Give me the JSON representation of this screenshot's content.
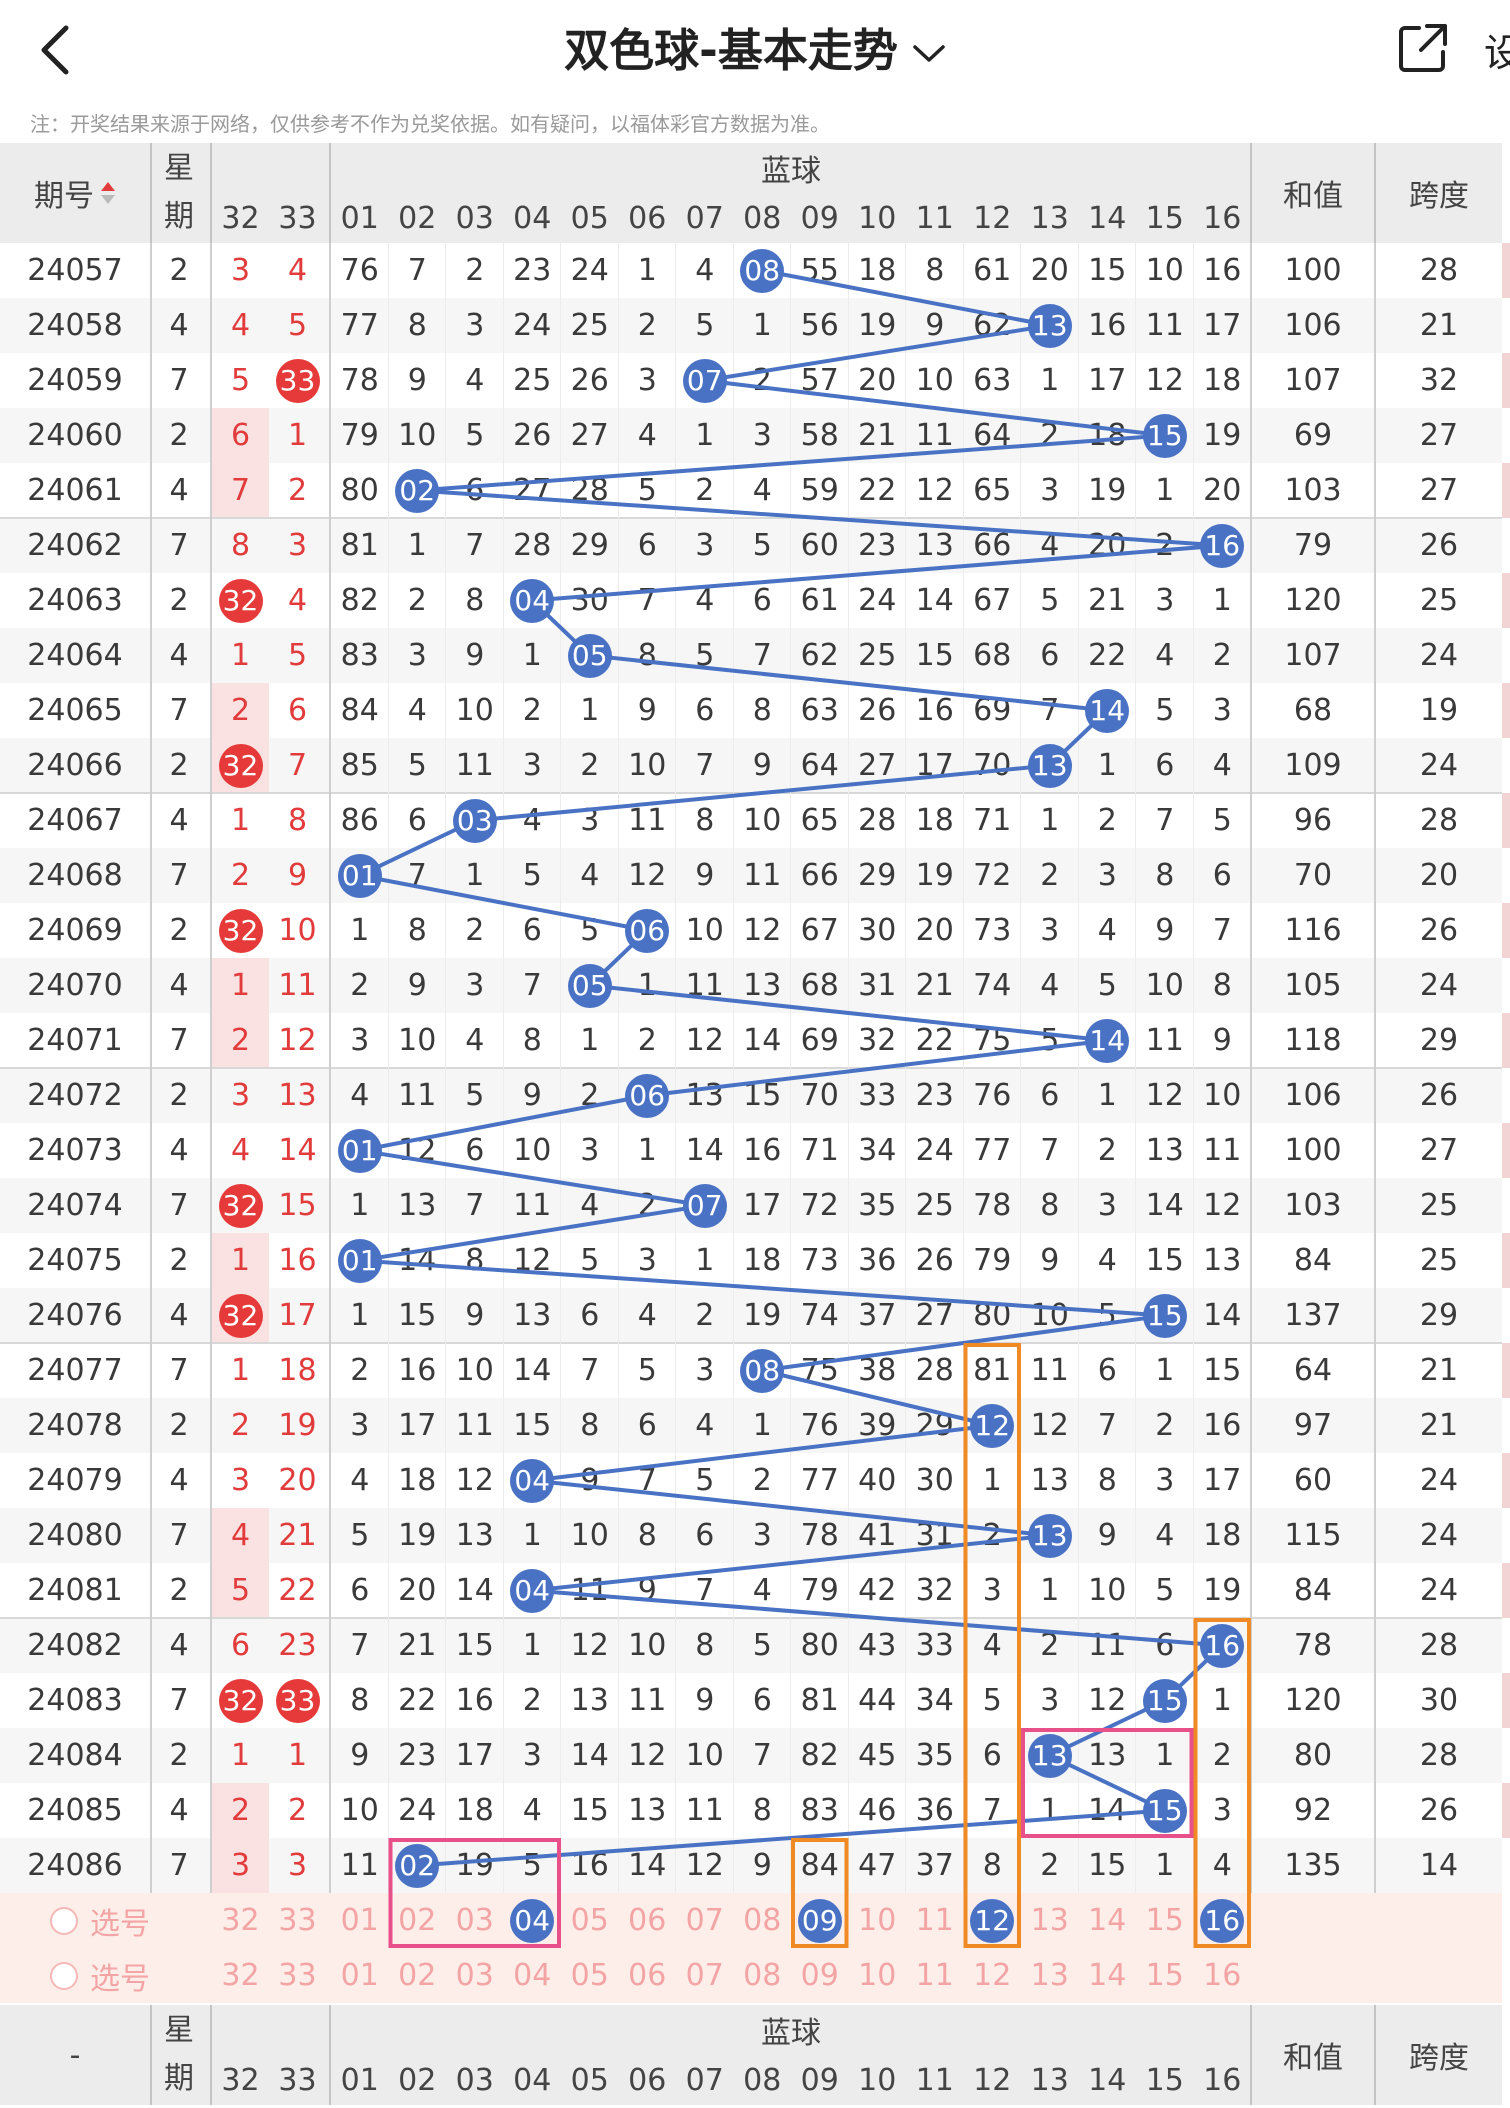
{
  "header": {
    "title": "双色球-基本走势",
    "settings_label": "设"
  },
  "notice": "注：开奖结果来源于网络，仅供参考不作为兑奖依据。如有疑问，以福体彩官方数据为准。",
  "table_header": {
    "period": "期号",
    "weekday": "星期",
    "red_cols": [
      "32",
      "33"
    ],
    "blue_group": "蓝球",
    "blue_cols": [
      "01",
      "02",
      "03",
      "04",
      "05",
      "06",
      "07",
      "08",
      "09",
      "10",
      "11",
      "12",
      "13",
      "14",
      "15",
      "16"
    ],
    "sum": "和值",
    "span": "跨度"
  },
  "footer_header": {
    "period": "-",
    "weekday": "星期",
    "red_cols": [
      "32",
      "33"
    ],
    "blue_group": "蓝球",
    "blue_cols": [
      "01",
      "02",
      "03",
      "04",
      "05",
      "06",
      "07",
      "08",
      "09",
      "10",
      "11",
      "12",
      "13",
      "14",
      "15",
      "16"
    ],
    "sum": "和值",
    "span": "跨度"
  },
  "rows": [
    {
      "period": "24057",
      "weekday": "2",
      "red": [
        "3",
        "4"
      ],
      "blue": [
        "76",
        "7",
        "2",
        "23",
        "24",
        "1",
        "4",
        "08",
        "55",
        "18",
        "8",
        "61",
        "20",
        "15",
        "10",
        "16"
      ],
      "sum": "100",
      "span": "28"
    },
    {
      "period": "24058",
      "weekday": "4",
      "red": [
        "4",
        "5"
      ],
      "blue": [
        "77",
        "8",
        "3",
        "24",
        "25",
        "2",
        "5",
        "1",
        "56",
        "19",
        "9",
        "62",
        "13",
        "16",
        "11",
        "17"
      ],
      "sum": "106",
      "span": "21"
    },
    {
      "period": "24059",
      "weekday": "7",
      "red": [
        "5",
        "33"
      ],
      "blue": [
        "78",
        "9",
        "4",
        "25",
        "26",
        "3",
        "07",
        "2",
        "57",
        "20",
        "10",
        "63",
        "1",
        "17",
        "12",
        "18"
      ],
      "sum": "107",
      "span": "32"
    },
    {
      "period": "24060",
      "weekday": "2",
      "red": [
        "6",
        "1"
      ],
      "blue": [
        "79",
        "10",
        "5",
        "26",
        "27",
        "4",
        "1",
        "3",
        "58",
        "21",
        "11",
        "64",
        "2",
        "18",
        "15",
        "19"
      ],
      "sum": "69",
      "span": "27"
    },
    {
      "period": "24061",
      "weekday": "4",
      "red": [
        "7",
        "2"
      ],
      "blue": [
        "80",
        "02",
        "6",
        "27",
        "28",
        "5",
        "2",
        "4",
        "59",
        "22",
        "12",
        "65",
        "3",
        "19",
        "1",
        "20"
      ],
      "sum": "103",
      "span": "27"
    },
    {
      "period": "24062",
      "weekday": "7",
      "red": [
        "8",
        "3"
      ],
      "blue": [
        "81",
        "1",
        "7",
        "28",
        "29",
        "6",
        "3",
        "5",
        "60",
        "23",
        "13",
        "66",
        "4",
        "20",
        "2",
        "16"
      ],
      "sum": "79",
      "span": "26"
    },
    {
      "period": "24063",
      "weekday": "2",
      "red": [
        "32",
        "4"
      ],
      "blue": [
        "82",
        "2",
        "8",
        "04",
        "30",
        "7",
        "4",
        "6",
        "61",
        "24",
        "14",
        "67",
        "5",
        "21",
        "3",
        "1"
      ],
      "sum": "120",
      "span": "25"
    },
    {
      "period": "24064",
      "weekday": "4",
      "red": [
        "1",
        "5"
      ],
      "blue": [
        "83",
        "3",
        "9",
        "1",
        "05",
        "8",
        "5",
        "7",
        "62",
        "25",
        "15",
        "68",
        "6",
        "22",
        "4",
        "2"
      ],
      "sum": "107",
      "span": "24"
    },
    {
      "period": "24065",
      "weekday": "7",
      "red": [
        "2",
        "6"
      ],
      "blue": [
        "84",
        "4",
        "10",
        "2",
        "1",
        "9",
        "6",
        "8",
        "63",
        "26",
        "16",
        "69",
        "7",
        "14",
        "5",
        "3"
      ],
      "sum": "68",
      "span": "19"
    },
    {
      "period": "24066",
      "weekday": "2",
      "red": [
        "32",
        "7"
      ],
      "blue": [
        "85",
        "5",
        "11",
        "3",
        "2",
        "10",
        "7",
        "9",
        "64",
        "27",
        "17",
        "70",
        "13",
        "1",
        "6",
        "4"
      ],
      "sum": "109",
      "span": "24"
    },
    {
      "period": "24067",
      "weekday": "4",
      "red": [
        "1",
        "8"
      ],
      "blue": [
        "86",
        "6",
        "03",
        "4",
        "3",
        "11",
        "8",
        "10",
        "65",
        "28",
        "18",
        "71",
        "1",
        "2",
        "7",
        "5"
      ],
      "sum": "96",
      "span": "28"
    },
    {
      "period": "24068",
      "weekday": "7",
      "red": [
        "2",
        "9"
      ],
      "blue": [
        "01",
        "7",
        "1",
        "5",
        "4",
        "12",
        "9",
        "11",
        "66",
        "29",
        "19",
        "72",
        "2",
        "3",
        "8",
        "6"
      ],
      "sum": "70",
      "span": "20"
    },
    {
      "period": "24069",
      "weekday": "2",
      "red": [
        "32",
        "10"
      ],
      "blue": [
        "1",
        "8",
        "2",
        "6",
        "5",
        "06",
        "10",
        "12",
        "67",
        "30",
        "20",
        "73",
        "3",
        "4",
        "9",
        "7"
      ],
      "sum": "116",
      "span": "26"
    },
    {
      "period": "24070",
      "weekday": "4",
      "red": [
        "1",
        "11"
      ],
      "blue": [
        "2",
        "9",
        "3",
        "7",
        "05",
        "1",
        "11",
        "13",
        "68",
        "31",
        "21",
        "74",
        "4",
        "5",
        "10",
        "8"
      ],
      "sum": "105",
      "span": "24"
    },
    {
      "period": "24071",
      "weekday": "7",
      "red": [
        "2",
        "12"
      ],
      "blue": [
        "3",
        "10",
        "4",
        "8",
        "1",
        "2",
        "12",
        "14",
        "69",
        "32",
        "22",
        "75",
        "5",
        "14",
        "11",
        "9"
      ],
      "sum": "118",
      "span": "29"
    },
    {
      "period": "24072",
      "weekday": "2",
      "red": [
        "3",
        "13"
      ],
      "blue": [
        "4",
        "11",
        "5",
        "9",
        "2",
        "06",
        "13",
        "15",
        "70",
        "33",
        "23",
        "76",
        "6",
        "1",
        "12",
        "10"
      ],
      "sum": "106",
      "span": "26"
    },
    {
      "period": "24073",
      "weekday": "4",
      "red": [
        "4",
        "14"
      ],
      "blue": [
        "01",
        "12",
        "6",
        "10",
        "3",
        "1",
        "14",
        "16",
        "71",
        "34",
        "24",
        "77",
        "7",
        "2",
        "13",
        "11"
      ],
      "sum": "100",
      "span": "27"
    },
    {
      "period": "24074",
      "weekday": "7",
      "red": [
        "32",
        "15"
      ],
      "blue": [
        "1",
        "13",
        "7",
        "11",
        "4",
        "2",
        "07",
        "17",
        "72",
        "35",
        "25",
        "78",
        "8",
        "3",
        "14",
        "12"
      ],
      "sum": "103",
      "span": "25"
    },
    {
      "period": "24075",
      "weekday": "2",
      "red": [
        "1",
        "16"
      ],
      "blue": [
        "01",
        "14",
        "8",
        "12",
        "5",
        "3",
        "1",
        "18",
        "73",
        "36",
        "26",
        "79",
        "9",
        "4",
        "15",
        "13"
      ],
      "sum": "84",
      "span": "25"
    },
    {
      "period": "24076",
      "weekday": "4",
      "red": [
        "32",
        "17"
      ],
      "blue": [
        "1",
        "15",
        "9",
        "13",
        "6",
        "4",
        "2",
        "19",
        "74",
        "37",
        "27",
        "80",
        "10",
        "5",
        "15",
        "14"
      ],
      "sum": "137",
      "span": "29"
    },
    {
      "period": "24077",
      "weekday": "7",
      "red": [
        "1",
        "18"
      ],
      "blue": [
        "2",
        "16",
        "10",
        "14",
        "7",
        "5",
        "3",
        "08",
        "75",
        "38",
        "28",
        "81",
        "11",
        "6",
        "1",
        "15"
      ],
      "sum": "64",
      "span": "21"
    },
    {
      "period": "24078",
      "weekday": "2",
      "red": [
        "2",
        "19"
      ],
      "blue": [
        "3",
        "17",
        "11",
        "15",
        "8",
        "6",
        "4",
        "1",
        "76",
        "39",
        "29",
        "12",
        "12",
        "7",
        "2",
        "16"
      ],
      "sum": "97",
      "span": "21"
    },
    {
      "period": "24079",
      "weekday": "4",
      "red": [
        "3",
        "20"
      ],
      "blue": [
        "4",
        "18",
        "12",
        "04",
        "9",
        "7",
        "5",
        "2",
        "77",
        "40",
        "30",
        "1",
        "13",
        "8",
        "3",
        "17"
      ],
      "sum": "60",
      "span": "24"
    },
    {
      "period": "24080",
      "weekday": "7",
      "red": [
        "4",
        "21"
      ],
      "blue": [
        "5",
        "19",
        "13",
        "1",
        "10",
        "8",
        "6",
        "3",
        "78",
        "41",
        "31",
        "2",
        "13",
        "9",
        "4",
        "18"
      ],
      "sum": "115",
      "span": "24"
    },
    {
      "period": "24081",
      "weekday": "2",
      "red": [
        "5",
        "22"
      ],
      "blue": [
        "6",
        "20",
        "14",
        "04",
        "11",
        "9",
        "7",
        "4",
        "79",
        "42",
        "32",
        "3",
        "1",
        "10",
        "5",
        "19"
      ],
      "sum": "84",
      "span": "24"
    },
    {
      "period": "24082",
      "weekday": "4",
      "red": [
        "6",
        "23"
      ],
      "blue": [
        "7",
        "21",
        "15",
        "1",
        "12",
        "10",
        "8",
        "5",
        "80",
        "43",
        "33",
        "4",
        "2",
        "11",
        "6",
        "16"
      ],
      "sum": "78",
      "span": "28"
    },
    {
      "period": "24083",
      "weekday": "7",
      "red": [
        "32",
        "33"
      ],
      "blue": [
        "8",
        "22",
        "16",
        "2",
        "13",
        "11",
        "9",
        "6",
        "81",
        "44",
        "34",
        "5",
        "3",
        "12",
        "15",
        "1"
      ],
      "sum": "120",
      "span": "30"
    },
    {
      "period": "24084",
      "weekday": "2",
      "red": [
        "1",
        "1"
      ],
      "blue": [
        "9",
        "23",
        "17",
        "3",
        "14",
        "12",
        "10",
        "7",
        "82",
        "45",
        "35",
        "6",
        "13",
        "13",
        "1",
        "2"
      ],
      "sum": "80",
      "span": "28"
    },
    {
      "period": "24085",
      "weekday": "4",
      "red": [
        "2",
        "2"
      ],
      "blue": [
        "10",
        "24",
        "18",
        "4",
        "15",
        "13",
        "11",
        "8",
        "83",
        "46",
        "36",
        "7",
        "1",
        "14",
        "15",
        "3"
      ],
      "sum": "92",
      "span": "26"
    },
    {
      "period": "24086",
      "weekday": "7",
      "red": [
        "3",
        "3"
      ],
      "blue": [
        "11",
        "02",
        "19",
        "5",
        "16",
        "14",
        "12",
        "9",
        "84",
        "47",
        "37",
        "8",
        "2",
        "15",
        "1",
        "4"
      ],
      "sum": "135",
      "span": "14"
    }
  ],
  "hits": {
    "blue_index_per_row": [
      7,
      12,
      6,
      14,
      1,
      15,
      3,
      4,
      13,
      12,
      2,
      0,
      5,
      4,
      13,
      5,
      0,
      6,
      0,
      14,
      7,
      11,
      3,
      12,
      3,
      15,
      14,
      12,
      14,
      1
    ],
    "red_hits_per_row": [
      [],
      [],
      [
        1
      ],
      [],
      [],
      [],
      [
        0
      ],
      [],
      [],
      [
        0
      ],
      [],
      [],
      [
        0
      ],
      [],
      [],
      [],
      [],
      [
        0
      ],
      [],
      [
        0
      ],
      [],
      [],
      [],
      [],
      [],
      [],
      [
        0,
        1
      ],
      [],
      [],
      []
    ]
  },
  "selection_rows": [
    {
      "label": "选号",
      "red": [
        "32",
        "33"
      ],
      "blue": [
        "01",
        "02",
        "03",
        "04",
        "05",
        "06",
        "07",
        "08",
        "09",
        "10",
        "11",
        "12",
        "13",
        "14",
        "15",
        "16"
      ],
      "selected": [
        3,
        8,
        11,
        15
      ]
    },
    {
      "label": "选号",
      "red": [
        "32",
        "33"
      ],
      "blue": [
        "01",
        "02",
        "03",
        "04",
        "05",
        "06",
        "07",
        "08",
        "09",
        "10",
        "11",
        "12",
        "13",
        "14",
        "15",
        "16"
      ],
      "selected": []
    }
  ],
  "colors": {
    "blue_ball": "#4a72c4",
    "red_ball": "#e63a3a",
    "orange_box": "#f08a24",
    "pink_box": "#e8508a",
    "header_bg": "#ececec",
    "selection_bg": "#fdeeea"
  }
}
